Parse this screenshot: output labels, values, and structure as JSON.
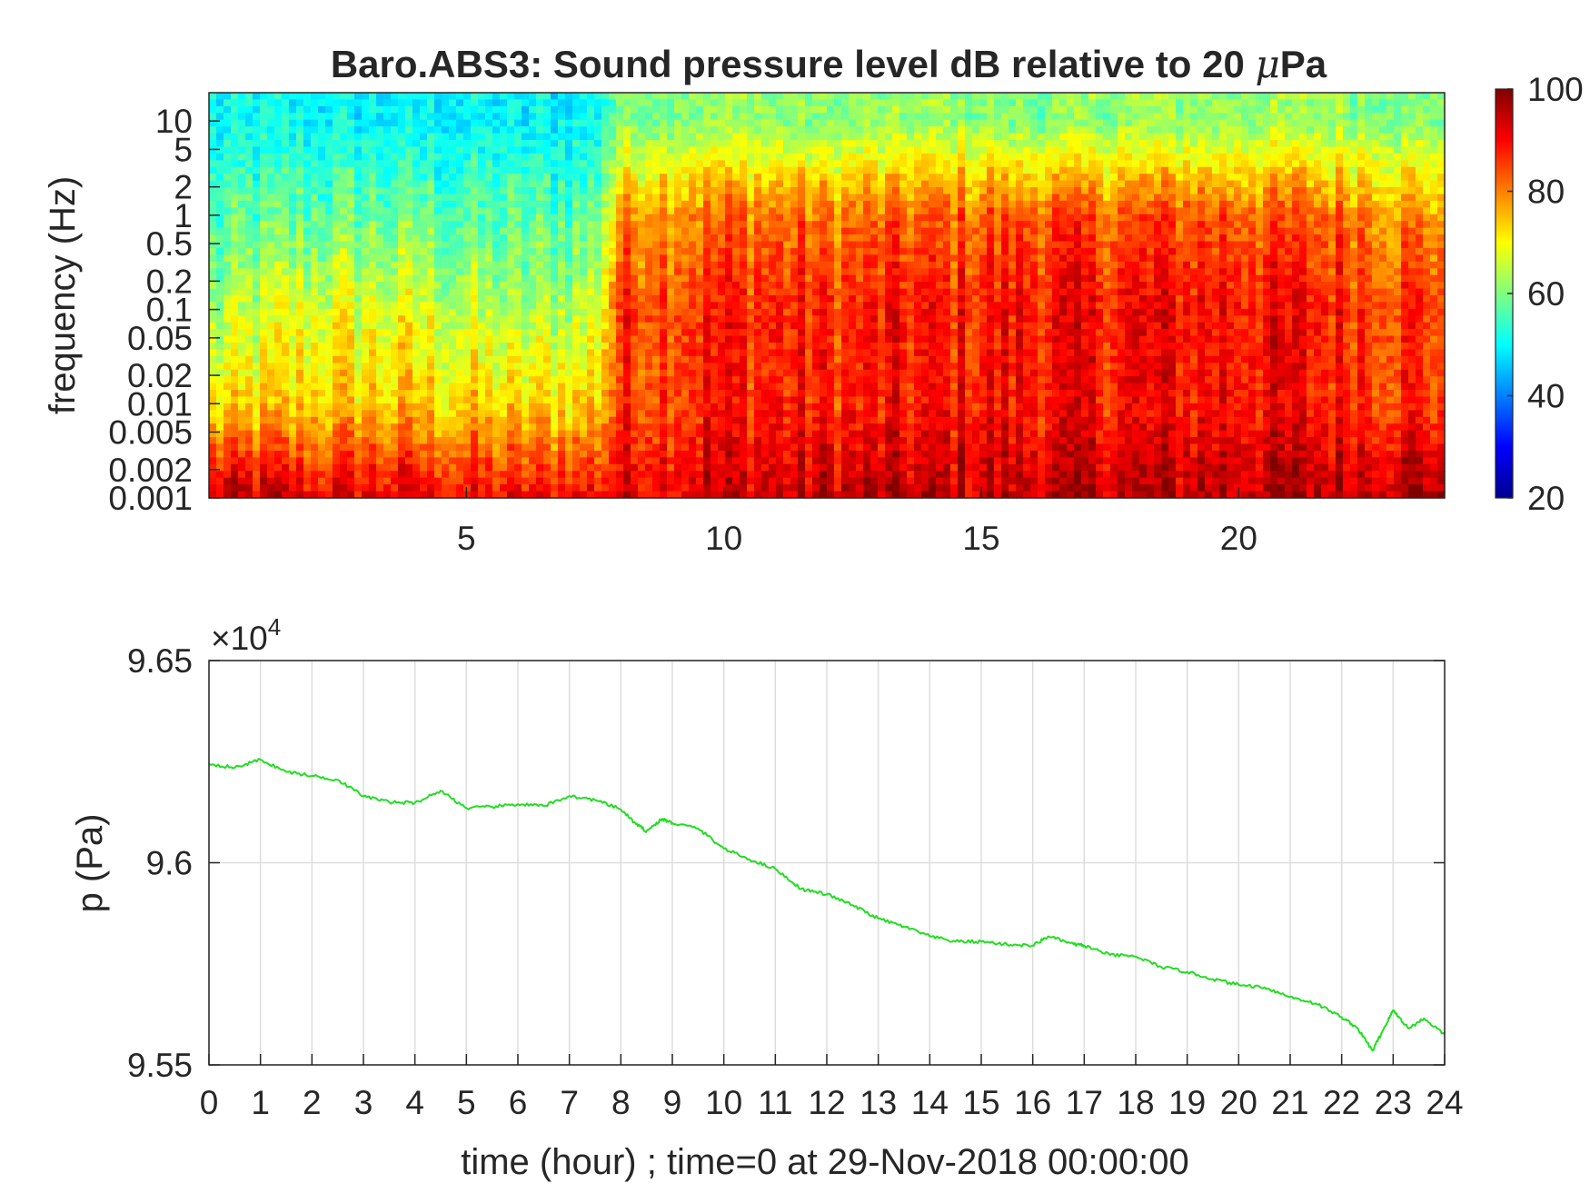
{
  "chart_data": [
    {
      "type": "heatmap",
      "title": "Baro.ABS3: Sound pressure level dB relative to 20 μPa",
      "title_parts": {
        "before": "Baro.ABS3: Sound pressure level dB relative to 20 ",
        "mu": "μ",
        "after": "Pa"
      },
      "ylabel": "frequency (Hz)",
      "xlabel": "",
      "xlim": [
        0,
        24
      ],
      "x_ticks": [
        5,
        10,
        15,
        20
      ],
      "y_scale": "log",
      "ylim": [
        0.001,
        20
      ],
      "y_ticks": [
        {
          "value": 10,
          "label": "10"
        },
        {
          "value": 5,
          "label": "5"
        },
        {
          "value": 2,
          "label": "2"
        },
        {
          "value": 1,
          "label": "1"
        },
        {
          "value": 0.5,
          "label": "0.5"
        },
        {
          "value": 0.2,
          "label": "0.2"
        },
        {
          "value": 0.1,
          "label": "0.1"
        },
        {
          "value": 0.05,
          "label": "0.05"
        },
        {
          "value": 0.02,
          "label": "0.02"
        },
        {
          "value": 0.01,
          "label": "0.01"
        },
        {
          "value": 0.005,
          "label": "0.005"
        },
        {
          "value": 0.002,
          "label": "0.002"
        },
        {
          "value": 0.001,
          "label": "0.001"
        }
      ],
      "colormap": "jet",
      "colorbar": {
        "range": [
          20,
          100
        ],
        "ticks": [
          20,
          40,
          60,
          80,
          100
        ]
      },
      "level_db_by_hour": {
        "hours": [
          0,
          2,
          4,
          6,
          7.5,
          8,
          10,
          12,
          14,
          16,
          18,
          20,
          22,
          24
        ],
        "at_10Hz": [
          50,
          50,
          50,
          49,
          50,
          60,
          62,
          60,
          62,
          60,
          62,
          62,
          62,
          60
        ],
        "at_1Hz": [
          55,
          58,
          58,
          56,
          58,
          78,
          82,
          80,
          82,
          84,
          84,
          84,
          82,
          78
        ],
        "at_0.1Hz": [
          62,
          68,
          68,
          62,
          66,
          86,
          88,
          87,
          88,
          89,
          90,
          90,
          88,
          86
        ],
        "at_0.01Hz": [
          70,
          74,
          74,
          72,
          74,
          85,
          88,
          87,
          88,
          89,
          89,
          90,
          88,
          86
        ],
        "at_0.001Hz": [
          96,
          92,
          92,
          90,
          90,
          92,
          94,
          94,
          95,
          95,
          95,
          96,
          96,
          98
        ]
      }
    },
    {
      "type": "line",
      "xlabel": "time (hour) ; time=0 at 29-Nov-2018 00:00:00",
      "ylabel": "p (Pa)",
      "exponent_label": {
        "times": "×10",
        "power": "4"
      },
      "xlim": [
        0,
        24
      ],
      "x_ticks": [
        0,
        1,
        2,
        3,
        4,
        5,
        6,
        7,
        8,
        9,
        10,
        11,
        12,
        13,
        14,
        15,
        16,
        17,
        18,
        19,
        20,
        21,
        22,
        23,
        24
      ],
      "ylim": [
        9.55,
        9.65
      ],
      "y_ticks": [
        {
          "value": 9.55,
          "label": "9.55"
        },
        {
          "value": 9.6,
          "label": "9.6"
        },
        {
          "value": 9.65,
          "label": "9.65"
        }
      ],
      "grid": true,
      "series": [
        {
          "color": "#22dd22",
          "x": [
            0,
            0.5,
            1,
            1.5,
            2,
            2.5,
            3,
            3.5,
            4,
            4.5,
            5,
            5.5,
            6,
            6.5,
            7,
            7.5,
            8,
            8.3,
            8.5,
            8.8,
            9,
            9.5,
            10,
            10.5,
            11,
            11.5,
            12,
            12.5,
            13,
            13.5,
            14,
            14.5,
            15,
            15.5,
            16,
            16.3,
            16.8,
            17,
            17.5,
            18,
            18.5,
            19,
            19.5,
            20,
            20.5,
            21,
            21.5,
            22,
            22.3,
            22.6,
            22.8,
            23,
            23.3,
            23.6,
            24
          ],
          "y": [
            9.6245,
            9.6235,
            9.6255,
            9.6225,
            9.6215,
            9.6205,
            9.6165,
            9.615,
            9.6148,
            9.6178,
            9.6135,
            9.6138,
            9.6145,
            9.614,
            9.6165,
            9.6155,
            9.6132,
            9.6095,
            9.6078,
            9.6108,
            9.6098,
            9.6085,
            9.6035,
            9.6008,
            9.5985,
            9.5935,
            9.5922,
            9.5895,
            9.5862,
            9.5842,
            9.5818,
            9.5805,
            9.5805,
            9.5798,
            9.5795,
            9.5818,
            9.5798,
            9.5795,
            9.5772,
            9.5768,
            9.5742,
            9.573,
            9.5712,
            9.5698,
            9.5692,
            9.5668,
            9.5652,
            9.5618,
            9.5592,
            9.5535,
            9.5585,
            9.5635,
            9.559,
            9.5615,
            9.5575
          ]
        }
      ]
    }
  ],
  "colors": {
    "line": "#22dd22",
    "axes": "#262626",
    "grid": "#dddddd"
  }
}
